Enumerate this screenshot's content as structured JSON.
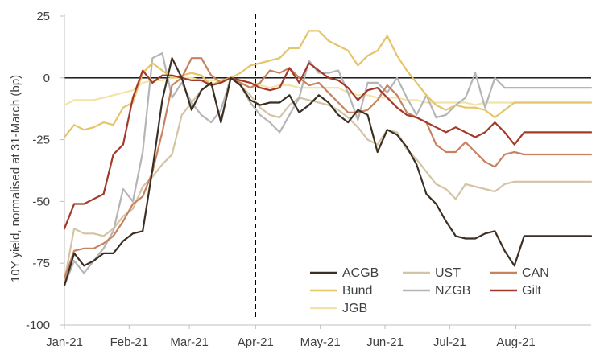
{
  "chart_data": {
    "type": "line",
    "title": "",
    "ylabel": "10Y yield, normalised at 31-March (bp)",
    "xlabel": "",
    "ylim": [
      -100,
      25
    ],
    "yticks": [
      25,
      0,
      -25,
      -50,
      -75,
      -100
    ],
    "xlim": [
      0,
      35
    ],
    "x_tick_positions": [
      0,
      4.3,
      8.3,
      12.7,
      17,
      21.3,
      25.6,
      30
    ],
    "x_tick_labels": [
      "Jan-21",
      "Feb-21",
      "Mar-21",
      "Apr-21",
      "May-21",
      "Jun-21",
      "Jul-21",
      "Aug-21"
    ],
    "reference_line_x": 12.7,
    "zero_line": true,
    "grid": false,
    "legend_position": "bottom-right",
    "x": [
      0,
      0.65,
      1.3,
      1.95,
      2.6,
      3.25,
      3.9,
      4.55,
      5.2,
      5.85,
      6.5,
      7.15,
      7.8,
      8.45,
      9.1,
      9.75,
      10.4,
      11.05,
      11.7,
      12.35,
      13,
      13.65,
      14.3,
      14.95,
      15.6,
      16.25,
      16.9,
      17.55,
      18.2,
      18.85,
      19.5,
      20.15,
      20.8,
      21.45,
      22.1,
      22.75,
      23.4,
      24.05,
      24.7,
      25.35,
      26,
      26.65,
      27.3,
      27.95,
      28.6,
      29.25,
      29.9,
      30.55,
      31.2,
      31.85,
      32.5,
      33.15,
      33.8,
      34.45,
      35
    ],
    "series": [
      {
        "name": "ACGB",
        "color": "#3b2f24",
        "values": [
          -84,
          -71,
          -76,
          -74,
          -71,
          -71,
          -66,
          -63,
          -62,
          -37,
          -9,
          8,
          0,
          -13,
          -5,
          -2,
          -18,
          0,
          -3,
          -9,
          -11,
          -10,
          -10,
          -7,
          -14,
          -11,
          -7,
          -10,
          -15,
          -18,
          -13,
          -15,
          -30,
          -21,
          -23,
          -28,
          -35,
          -47,
          -51,
          -58,
          -64,
          -65,
          -65,
          -63,
          -62,
          -70,
          -76,
          -64,
          -64,
          -64,
          -64,
          -64,
          -64,
          -64,
          -64
        ]
      },
      {
        "name": "UST",
        "color": "#d4c4a6",
        "values": [
          -82,
          -61,
          -63,
          -63,
          -64,
          -61,
          -56,
          -53,
          -44,
          -40,
          -35,
          -31,
          -15,
          -10,
          -5,
          -2,
          -18,
          0,
          -3,
          -7,
          -12,
          -15,
          -16,
          -11,
          -8,
          -9,
          -10,
          -11,
          -13,
          -16,
          -20,
          -25,
          -27,
          -21,
          -22,
          -29,
          -33,
          -38,
          -43,
          -45,
          -49,
          -43,
          -44,
          -45,
          -46,
          -43,
          -42,
          -42,
          -42,
          -42,
          -42,
          -42,
          -42,
          -42,
          -42
        ]
      },
      {
        "name": "CAN",
        "color": "#c9825f",
        "values": [
          -81,
          -70,
          -69,
          -69,
          -67,
          -64,
          -58,
          -51,
          -48,
          -38,
          -22,
          -3,
          0,
          8,
          8,
          1,
          -2,
          0,
          -2,
          -4,
          -2,
          3,
          2,
          4,
          0,
          -3,
          -2,
          -6,
          -10,
          -14,
          -14,
          -13,
          -9,
          -3,
          -7,
          -14,
          -16,
          -18,
          -27,
          -30,
          -30,
          -26,
          -30,
          -34,
          -36,
          -31,
          -30,
          -31,
          -31,
          -31,
          -31,
          -31,
          -31,
          -31,
          -31
        ]
      },
      {
        "name": "Bund",
        "color": "#e5c46a",
        "values": [
          -24,
          -19,
          -21,
          -20,
          -18,
          -19,
          -12,
          -10,
          2,
          6,
          3,
          0,
          1,
          2,
          1,
          -3,
          -1,
          0,
          2,
          5,
          6,
          7,
          8,
          12,
          12,
          19,
          19,
          15,
          13,
          11,
          5,
          9,
          11,
          17,
          9,
          3,
          -2,
          -7,
          -11,
          -13,
          -11,
          -12,
          -12,
          -13,
          -16,
          -13,
          -10,
          -10,
          -10,
          -10,
          -10,
          -10,
          -10,
          -10,
          -10
        ]
      },
      {
        "name": "NZGB",
        "color": "#b5b5b5",
        "values": [
          -84,
          -74,
          -79,
          -74,
          -69,
          -62,
          -45,
          -50,
          -30,
          8,
          10,
          -8,
          -2,
          -10,
          -15,
          -18,
          -13,
          0,
          -3,
          -10,
          -15,
          -18,
          -22,
          -15,
          -8,
          7,
          2,
          2,
          3,
          -6,
          -17,
          -2,
          -2,
          -6,
          0,
          -8,
          -15,
          -7,
          -16,
          -15,
          -11,
          -8,
          2,
          -12,
          0,
          -4,
          -4,
          -4,
          -4,
          -4,
          -4,
          -4,
          -4,
          -4,
          -4
        ]
      },
      {
        "name": "Gilt",
        "color": "#a33a28",
        "values": [
          -61,
          -51,
          -51,
          -49,
          -47,
          -31,
          -27,
          -8,
          3,
          -2,
          1,
          1,
          0,
          -1,
          -1,
          -3,
          -2,
          0,
          -1,
          -2,
          -4,
          -5,
          -4,
          4,
          -2,
          6,
          3,
          0,
          -1,
          -4,
          -9,
          -5,
          -4,
          -8,
          -12,
          -15,
          -16,
          -18,
          -20,
          -22,
          -20,
          -22,
          -24,
          -22,
          -18,
          -22,
          -27,
          -22,
          -22,
          -22,
          -22,
          -22,
          -22,
          -22,
          -22
        ]
      },
      {
        "name": "JGB",
        "color": "#f2e4a6",
        "values": [
          -11,
          -9,
          -9,
          -9,
          -8,
          -7,
          -6,
          -5,
          -2,
          -1,
          -1,
          0,
          0,
          0,
          -1,
          -1,
          -1,
          0,
          -1,
          -2,
          -3,
          -4,
          -3,
          -3,
          -4,
          -4,
          -4,
          -4,
          -4,
          -6,
          -7,
          -7,
          -8,
          -8,
          -8,
          -9,
          -9,
          -10,
          -10,
          -10,
          -10,
          -10,
          -11,
          -10,
          -10,
          -10,
          -10,
          -10,
          -10,
          -10,
          -10,
          -10,
          -10,
          -10,
          -10
        ]
      }
    ]
  }
}
